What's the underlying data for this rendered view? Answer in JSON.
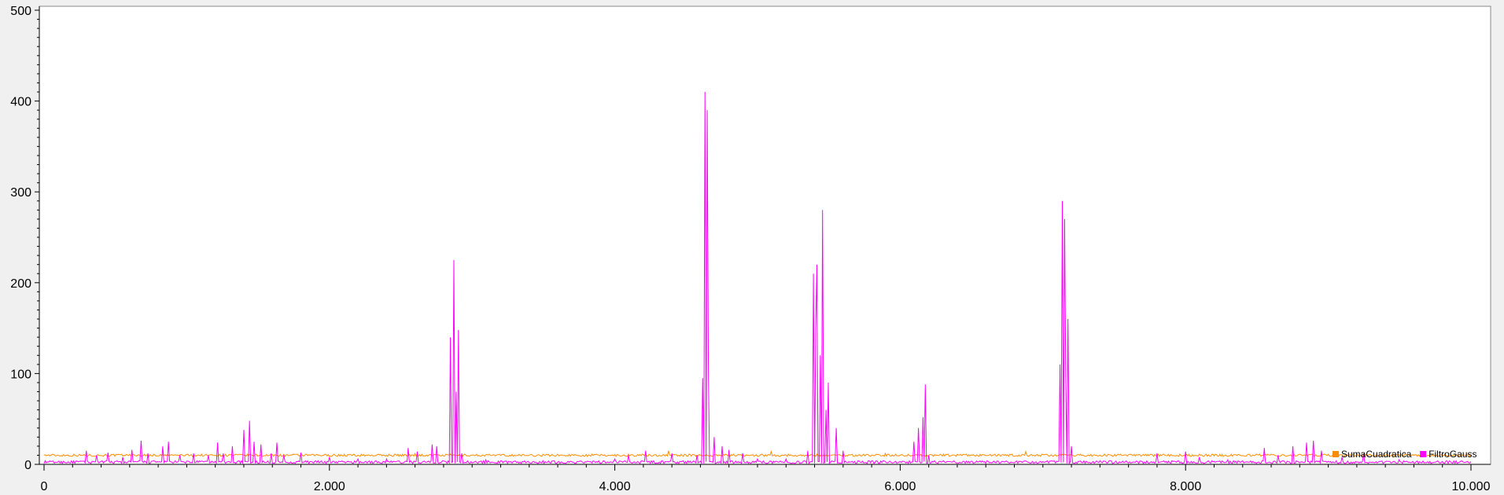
{
  "chart_data": {
    "type": "line",
    "title": "",
    "xlabel": "",
    "ylabel": "",
    "xlim": [
      0,
      10000
    ],
    "ylim": [
      0,
      500
    ],
    "x_ticks": [
      0,
      2000,
      4000,
      6000,
      8000,
      10000
    ],
    "x_tick_labels": [
      "0",
      "2.000",
      "4.000",
      "6.000",
      "8.000",
      "10.000"
    ],
    "y_ticks": [
      0,
      100,
      200,
      300,
      400,
      500
    ],
    "y_tick_labels": [
      "0",
      "100",
      "200",
      "300",
      "400",
      "500"
    ],
    "grid": false,
    "legend_position": "bottom-right",
    "series": [
      {
        "name": "SumaCuadratica",
        "color": "#ff8c00",
        "baseline": 10,
        "points": [
          [
            0,
            10
          ],
          [
            600,
            11
          ],
          [
            1200,
            10
          ],
          [
            1800,
            11
          ],
          [
            2600,
            12
          ],
          [
            2700,
            10
          ],
          [
            3500,
            10
          ],
          [
            4000,
            10
          ],
          [
            4380,
            15
          ],
          [
            4450,
            10
          ],
          [
            5100,
            14
          ],
          [
            5200,
            10
          ],
          [
            5900,
            12
          ],
          [
            6000,
            10
          ],
          [
            6880,
            14
          ],
          [
            6950,
            10
          ],
          [
            8000,
            10
          ],
          [
            9000,
            10
          ],
          [
            10000,
            10
          ]
        ]
      },
      {
        "name": "FiltroGauss",
        "color": "#ff00ff",
        "baseline": 1,
        "points": [
          [
            300,
            15
          ],
          [
            370,
            10
          ],
          [
            450,
            13
          ],
          [
            550,
            8
          ],
          [
            620,
            16
          ],
          [
            680,
            26
          ],
          [
            730,
            12
          ],
          [
            830,
            20
          ],
          [
            870,
            25
          ],
          [
            950,
            10
          ],
          [
            1050,
            12
          ],
          [
            1150,
            10
          ],
          [
            1220,
            24
          ],
          [
            1260,
            12
          ],
          [
            1320,
            20
          ],
          [
            1400,
            38
          ],
          [
            1440,
            48
          ],
          [
            1470,
            25
          ],
          [
            1520,
            22
          ],
          [
            1590,
            12
          ],
          [
            1630,
            24
          ],
          [
            1680,
            10
          ],
          [
            1800,
            13
          ],
          [
            2000,
            8
          ],
          [
            2200,
            6
          ],
          [
            2400,
            6
          ],
          [
            2550,
            18
          ],
          [
            2620,
            14
          ],
          [
            2720,
            22
          ],
          [
            2750,
            20
          ],
          [
            2852,
            140
          ],
          [
            2870,
            225
          ],
          [
            2890,
            80
          ],
          [
            2905,
            148
          ],
          [
            2930,
            12
          ],
          [
            3100,
            5
          ],
          [
            3500,
            4
          ],
          [
            4000,
            6
          ],
          [
            4100,
            10
          ],
          [
            4220,
            15
          ],
          [
            4400,
            12
          ],
          [
            4580,
            10
          ],
          [
            4620,
            95
          ],
          [
            4635,
            410
          ],
          [
            4650,
            390
          ],
          [
            4660,
            100
          ],
          [
            4700,
            30
          ],
          [
            4750,
            20
          ],
          [
            4800,
            16
          ],
          [
            4900,
            12
          ],
          [
            5000,
            6
          ],
          [
            5200,
            6
          ],
          [
            5350,
            15
          ],
          [
            5390,
            210
          ],
          [
            5410,
            150
          ],
          [
            5420,
            220
          ],
          [
            5440,
            120
          ],
          [
            5460,
            280
          ],
          [
            5480,
            60
          ],
          [
            5500,
            90
          ],
          [
            5550,
            40
          ],
          [
            5600,
            15
          ],
          [
            5800,
            4
          ],
          [
            6000,
            3
          ],
          [
            6100,
            25
          ],
          [
            6130,
            40
          ],
          [
            6160,
            52
          ],
          [
            6175,
            88
          ],
          [
            6200,
            10
          ],
          [
            6500,
            3
          ],
          [
            7000,
            3
          ],
          [
            7120,
            110
          ],
          [
            7135,
            290
          ],
          [
            7150,
            270
          ],
          [
            7160,
            100
          ],
          [
            7175,
            160
          ],
          [
            7200,
            20
          ],
          [
            7400,
            4
          ],
          [
            7800,
            12
          ],
          [
            8000,
            14
          ],
          [
            8100,
            8
          ],
          [
            8300,
            5
          ],
          [
            8550,
            18
          ],
          [
            8650,
            10
          ],
          [
            8750,
            20
          ],
          [
            8850,
            24
          ],
          [
            8900,
            26
          ],
          [
            8950,
            15
          ],
          [
            9100,
            8
          ],
          [
            9250,
            12
          ],
          [
            9500,
            5
          ],
          [
            10000,
            3
          ]
        ]
      }
    ]
  }
}
